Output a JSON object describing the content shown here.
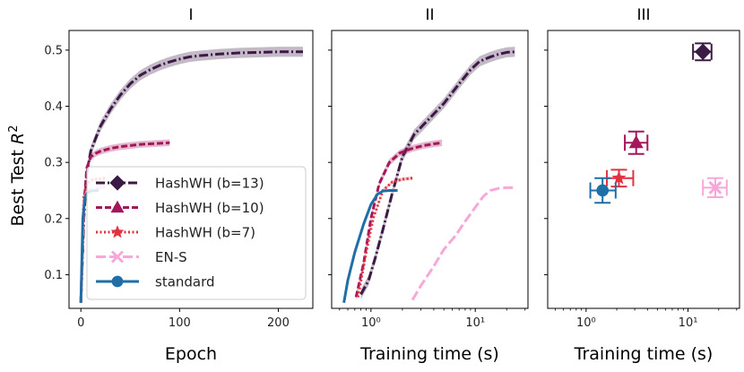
{
  "chart_data": {
    "type": "line",
    "ylabel": "Best Test R²",
    "ylim": [
      0.04,
      0.535
    ],
    "yticks": [
      0.1,
      0.2,
      0.3,
      0.4,
      0.5
    ],
    "ytick_labels": [
      "0.1",
      "0.2",
      "0.3",
      "0.4",
      "0.5"
    ],
    "colors": {
      "HashWH (b=13)": "#3b1a45",
      "HashWH (b=10)": "#a4175a",
      "HashWH (b=7)": "#e0323f",
      "EN-S": "#f7a8d8",
      "standard": "#1f6fa6"
    },
    "legend": {
      "location": "lower-left of panel I",
      "entries": [
        "HashWH (b=13)",
        "HashWH (b=10)",
        "HashWH (b=7)",
        "EN-S",
        "standard"
      ]
    },
    "panels": [
      {
        "title": "I",
        "xlabel": "Epoch",
        "xscale": "linear",
        "xlim": [
          -12,
          235
        ],
        "xticks": [
          0,
          100,
          200
        ],
        "xtick_labels": [
          "0",
          "100",
          "200"
        ],
        "series": [
          {
            "name": "HashWH (b=13)",
            "style": "dashdot",
            "x": [
              0,
              3,
              6,
              10,
              15,
              20,
              30,
              40,
              50,
              60,
              70,
              80,
              90,
              100,
              110,
              120,
              140,
              160,
              180,
              200,
              225
            ],
            "y": [
              0.05,
              0.2,
              0.28,
              0.32,
              0.343,
              0.365,
              0.395,
              0.42,
              0.44,
              0.455,
              0.465,
              0.473,
              0.479,
              0.484,
              0.488,
              0.49,
              0.493,
              0.495,
              0.496,
              0.497,
              0.497
            ],
            "band": 0.009
          },
          {
            "name": "HashWH (b=10)",
            "style": "dashed",
            "x": [
              0,
              3,
              6,
              10,
              15,
              20,
              30,
              40,
              50,
              60,
              70,
              80,
              90
            ],
            "y": [
              0.05,
              0.22,
              0.29,
              0.31,
              0.316,
              0.32,
              0.325,
              0.328,
              0.33,
              0.332,
              0.333,
              0.334,
              0.335
            ],
            "band": 0.006
          },
          {
            "name": "HashWH (b=7)",
            "style": "dotted",
            "x": [
              0,
              3,
              6,
              10,
              15,
              20,
              25
            ],
            "y": [
              0.05,
              0.24,
              0.262,
              0.268,
              0.27,
              0.271,
              0.272
            ],
            "band": 0.003
          },
          {
            "name": "EN-S",
            "style": "dashed-long",
            "x": [
              0,
              3,
              6,
              10,
              15,
              20,
              25
            ],
            "y": [
              0.05,
              0.23,
              0.248,
              0.252,
              0.254,
              0.255,
              0.255
            ],
            "band": 0.0
          },
          {
            "name": "standard",
            "style": "solid",
            "x": [
              0,
              2,
              4,
              6,
              10,
              15,
              18
            ],
            "y": [
              0.05,
              0.2,
              0.235,
              0.245,
              0.249,
              0.25,
              0.25
            ],
            "band": 0.0
          }
        ]
      },
      {
        "title": "II",
        "xlabel": "Training time (s)",
        "xscale": "log",
        "xlim": [
          0.42,
          32
        ],
        "xticks": [
          1,
          10
        ],
        "xtick_labels": [
          "10⁰",
          "10¹"
        ],
        "series": [
          {
            "name": "HashWH (b=13)",
            "style": "dashdot",
            "x": [
              0.8,
              0.95,
              1.1,
              1.3,
              1.6,
              2.0,
              2.6,
              3.5,
              5,
              7,
              9,
              11,
              14,
              17,
              20,
              24
            ],
            "y": [
              0.065,
              0.09,
              0.13,
              0.18,
              0.245,
              0.31,
              0.35,
              0.375,
              0.405,
              0.44,
              0.465,
              0.48,
              0.488,
              0.493,
              0.496,
              0.497
            ],
            "band": 0.009
          },
          {
            "name": "HashWH (b=10)",
            "style": "dashed",
            "x": [
              0.72,
              0.85,
              1.0,
              1.2,
              1.5,
              1.9,
              2.5,
              3.2,
              4.0,
              4.8
            ],
            "y": [
              0.06,
              0.12,
              0.2,
              0.262,
              0.3,
              0.317,
              0.325,
              0.33,
              0.333,
              0.335
            ],
            "band": 0.006
          },
          {
            "name": "HashWH (b=7)",
            "style": "dotted",
            "x": [
              0.75,
              0.9,
              1.05,
              1.3,
              1.6,
              2.0,
              2.5
            ],
            "y": [
              0.06,
              0.14,
              0.2,
              0.25,
              0.265,
              0.27,
              0.272
            ],
            "band": 0.003
          },
          {
            "name": "EN-S",
            "style": "dashed-long",
            "x": [
              2.5,
              3.0,
              4.0,
              5.0,
              6.5,
              8,
              10,
              12,
              14,
              17,
              20,
              24
            ],
            "y": [
              0.055,
              0.08,
              0.115,
              0.145,
              0.17,
              0.195,
              0.22,
              0.24,
              0.25,
              0.254,
              0.255,
              0.255
            ],
            "band": 0.0
          },
          {
            "name": "standard",
            "style": "solid",
            "x": [
              0.55,
              0.6,
              0.7,
              0.85,
              1.0,
              1.15,
              1.3,
              1.5,
              1.8
            ],
            "y": [
              0.05,
              0.09,
              0.14,
              0.19,
              0.225,
              0.243,
              0.249,
              0.25,
              0.25
            ],
            "band": 0.0
          }
        ]
      },
      {
        "title": "III",
        "xlabel": "Training time (s)",
        "xscale": "log",
        "xlim": [
          0.42,
          32
        ],
        "xticks": [
          1,
          10
        ],
        "xtick_labels": [
          "10⁰",
          "10¹"
        ],
        "points": [
          {
            "name": "HashWH (b=13)",
            "marker": "diamond",
            "x": 14,
            "y": 0.497,
            "xerr": [
              11.2,
              17.0
            ],
            "yerr": [
              0.482,
              0.512
            ]
          },
          {
            "name": "HashWH (b=10)",
            "marker": "triangle",
            "x": 3.1,
            "y": 0.335,
            "xerr": [
              2.4,
              4.0
            ],
            "yerr": [
              0.315,
              0.355
            ]
          },
          {
            "name": "HashWH (b=7)",
            "marker": "star",
            "x": 2.1,
            "y": 0.272,
            "xerr": [
              1.6,
              2.9
            ],
            "yerr": [
              0.257,
              0.287
            ]
          },
          {
            "name": "EN-S",
            "marker": "x",
            "x": 18.5,
            "y": 0.255,
            "xerr": [
              14.0,
              24.0
            ],
            "yerr": [
              0.238,
              0.272
            ]
          },
          {
            "name": "standard",
            "marker": "circle",
            "x": 1.45,
            "y": 0.25,
            "xerr": [
              1.1,
              1.95
            ],
            "yerr": [
              0.228,
              0.272
            ]
          }
        ]
      }
    ]
  }
}
